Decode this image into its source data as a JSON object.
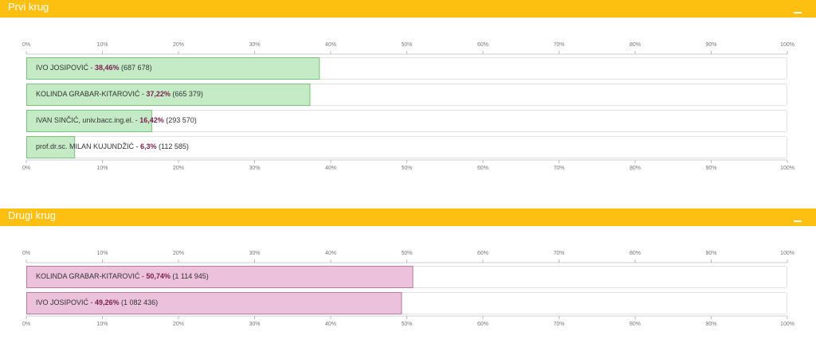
{
  "chart_data": [
    {
      "type": "bar",
      "orientation": "horizontal",
      "title": "Prvi krug",
      "xlim": [
        0,
        100
      ],
      "ticks": [
        "0%",
        "10%",
        "20%",
        "30%",
        "40%",
        "50%",
        "60%",
        "70%",
        "80%",
        "90%",
        "100%"
      ],
      "bar_color": "#c5ebc6",
      "bar_border": "#7cc07e",
      "series": [
        {
          "name": "IVO JOSIPOVIĆ",
          "percent_label": "38,46%",
          "votes": "(687 678)",
          "value": 38.46
        },
        {
          "name": "KOLINDA GRABAR-KITAROVIĆ",
          "percent_label": "37,22%",
          "votes": "(665 379)",
          "value": 37.22
        },
        {
          "name": "IVAN SINČIĆ, univ.bacc.ing.el.",
          "percent_label": "16,42%",
          "votes": "(293 570)",
          "value": 16.42
        },
        {
          "name": "prof.dr.sc. MILAN KUJUNDŽIĆ",
          "percent_label": "6,3%",
          "votes": "(112 585)",
          "value": 6.3
        }
      ]
    },
    {
      "type": "bar",
      "orientation": "horizontal",
      "title": "Drugi krug",
      "xlim": [
        0,
        100
      ],
      "ticks": [
        "0%",
        "10%",
        "20%",
        "30%",
        "40%",
        "50%",
        "60%",
        "70%",
        "80%",
        "90%",
        "100%"
      ],
      "bar_color": "#ecc1dc",
      "bar_border": "#b87aa2",
      "series": [
        {
          "name": "KOLINDA GRABAR-KITAROVIĆ",
          "percent_label": "50,74%",
          "votes": "(1 114 945)",
          "value": 50.74
        },
        {
          "name": "IVO JOSIPOVIĆ",
          "percent_label": "49,26%",
          "votes": "(1 082 436)",
          "value": 49.26
        }
      ]
    }
  ],
  "colors": {
    "header": "#fdc010",
    "accent_text": "#7a1f4e"
  },
  "icons": {
    "minimize": "minimize-icon"
  }
}
